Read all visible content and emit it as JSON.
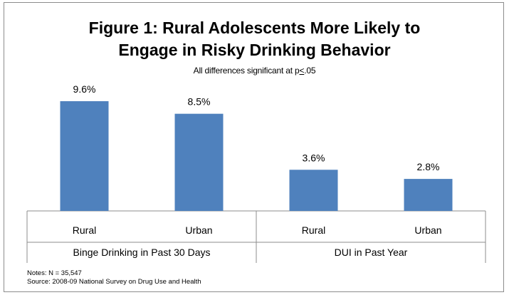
{
  "chart_data": {
    "type": "bar",
    "title_lines": [
      "Figure 1: Rural Adolescents More Likely to",
      "Engage in Risky Drinking Behavior"
    ],
    "subtitle": {
      "before": "All differences significant at p",
      "underlined": "<",
      "after": ".05"
    },
    "groups": [
      {
        "label": "Binge Drinking in Past 30 Days",
        "categories": [
          "Rural",
          "Urban"
        ],
        "values": [
          9.6,
          8.5
        ]
      },
      {
        "label": "DUI in Past Year",
        "categories": [
          "Rural",
          "Urban"
        ],
        "values": [
          3.6,
          2.8
        ]
      }
    ],
    "value_suffix": "%",
    "bar_color": "#4f81bd",
    "ylim": [
      0,
      10.5
    ],
    "grid": false,
    "legend": "none"
  },
  "notes": [
    "Notes: N = 35,547",
    "Source: 2008-09 National Survey on Drug Use and Health"
  ]
}
